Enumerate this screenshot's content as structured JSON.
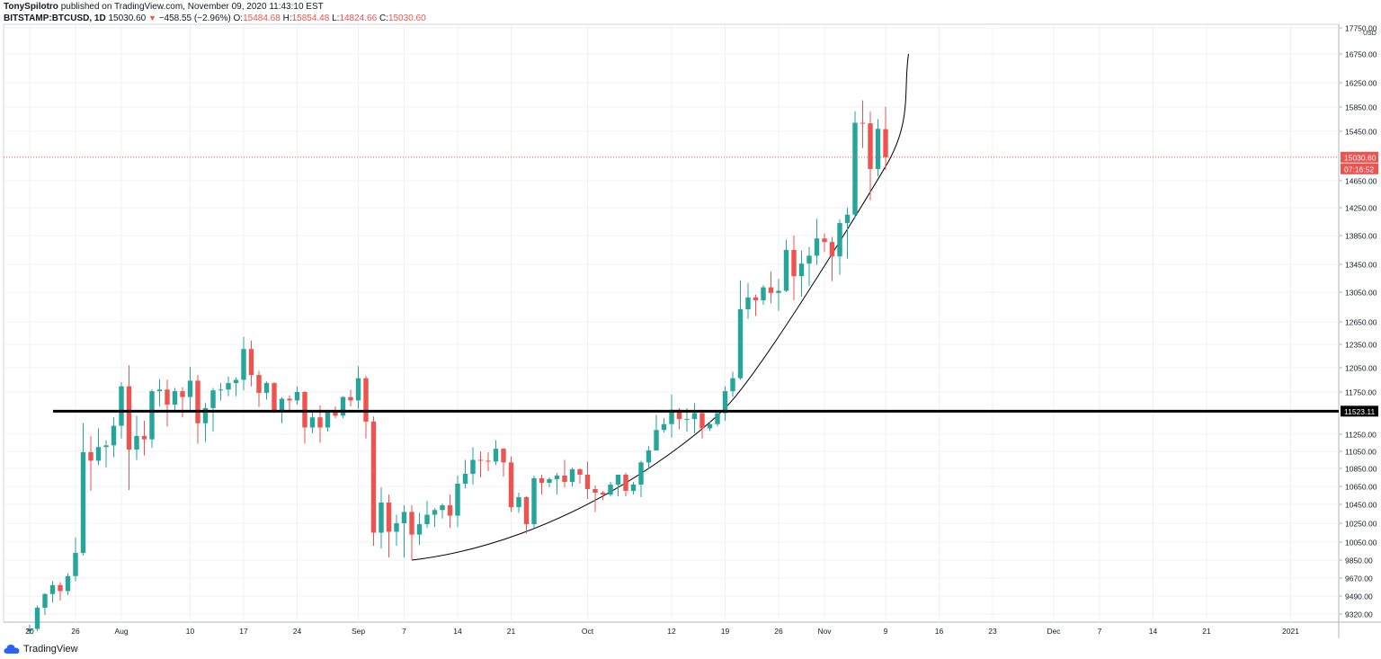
{
  "header": {
    "author": "TonySpilotro",
    "published": "published on TradingView.com, November 09, 2020 11:43:10 EST",
    "symbol": "BITSTAMP:BTCUSD, 1D",
    "last": "15030.60",
    "change": "−458.55 (−2.96%)",
    "o_label": "O:",
    "o_value": "15484.68",
    "h_label": "H:",
    "h_value": "15854.48",
    "l_label": "L:",
    "l_value": "14824.66",
    "c_label": "C:",
    "c_value": "15030.60"
  },
  "footer": {
    "logo_text": "TradingView",
    "logo_icon": "tradingview-cloud-icon"
  },
  "colors": {
    "up": "#26a69a",
    "down": "#ef5350",
    "grid": "#eef0f3",
    "text": "#131722"
  },
  "chart_data": {
    "type": "candlestick",
    "currency_label": "USD",
    "y_ticks": [
      17750,
      16750,
      16250,
      15850,
      15450,
      15030.6,
      14650,
      14250,
      13850,
      13450,
      13050,
      12650,
      12350,
      12050,
      11750,
      11523.11,
      11250,
      11050,
      10850,
      10650,
      10450,
      10250,
      10050,
      9850,
      9670,
      9490,
      9320
    ],
    "y_tick_labels": [
      "17750.00",
      "16750.00",
      "16250.00",
      "15850.00",
      "15450.00",
      "15030.60",
      "14650.00",
      "14250.00",
      "13850.00",
      "13450.00",
      "13050.00",
      "12650.00",
      "12350.00",
      "12050.00",
      "11750.00",
      "11523.11",
      "11250.00",
      "11050.00",
      "10850.00",
      "10650.00",
      "10450.00",
      "10250.00",
      "10050.00",
      "9850.00",
      "9670.00",
      "9490.00",
      "9320.00"
    ],
    "x_ticks": [
      {
        "label": "20",
        "date": "2020-07-20"
      },
      {
        "label": "26",
        "date": "2020-07-26"
      },
      {
        "label": "Aug",
        "date": "2020-08-01"
      },
      {
        "label": "10",
        "date": "2020-08-10"
      },
      {
        "label": "17",
        "date": "2020-08-17"
      },
      {
        "label": "24",
        "date": "2020-08-24"
      },
      {
        "label": "Sep",
        "date": "2020-09-01"
      },
      {
        "label": "7",
        "date": "2020-09-07"
      },
      {
        "label": "14",
        "date": "2020-09-14"
      },
      {
        "label": "21",
        "date": "2020-09-21"
      },
      {
        "label": "Oct",
        "date": "2020-10-01"
      },
      {
        "label": "12",
        "date": "2020-10-12"
      },
      {
        "label": "19",
        "date": "2020-10-19"
      },
      {
        "label": "26",
        "date": "2020-10-26"
      },
      {
        "label": "Nov",
        "date": "2020-11-01"
      },
      {
        "label": "9",
        "date": "2020-11-09"
      },
      {
        "label": "16",
        "date": "2020-11-16"
      },
      {
        "label": "23",
        "date": "2020-11-23"
      },
      {
        "label": "Dec",
        "date": "2020-12-01"
      },
      {
        "label": "7",
        "date": "2020-12-07"
      },
      {
        "label": "14",
        "date": "2020-12-14"
      },
      {
        "label": "21",
        "date": "2020-12-21"
      },
      {
        "label": "2021",
        "date": "2021-01-01"
      }
    ],
    "candles": [
      [
        "2020-07-20",
        9160,
        9220,
        9130,
        9180
      ],
      [
        "2020-07-21",
        9180,
        9400,
        9160,
        9380
      ],
      [
        "2020-07-22",
        9380,
        9520,
        9310,
        9510
      ],
      [
        "2020-07-23",
        9510,
        9640,
        9430,
        9600
      ],
      [
        "2020-07-24",
        9600,
        9630,
        9450,
        9540
      ],
      [
        "2020-07-25",
        9540,
        9720,
        9500,
        9690
      ],
      [
        "2020-07-26",
        9690,
        10100,
        9640,
        9930
      ],
      [
        "2020-07-27",
        9930,
        11380,
        9900,
        11040
      ],
      [
        "2020-07-28",
        11040,
        11230,
        10600,
        10940
      ],
      [
        "2020-07-29",
        10940,
        11320,
        10890,
        11100
      ],
      [
        "2020-07-30",
        11100,
        11180,
        10860,
        11120
      ],
      [
        "2020-07-31",
        11120,
        11450,
        10980,
        11350
      ],
      [
        "2020-08-01",
        11350,
        11870,
        11200,
        11820
      ],
      [
        "2020-08-02",
        11820,
        12080,
        10610,
        11070
      ],
      [
        "2020-08-03",
        11070,
        11470,
        10950,
        11230
      ],
      [
        "2020-08-04",
        11230,
        11410,
        11000,
        11190
      ],
      [
        "2020-08-05",
        11190,
        11780,
        11090,
        11760
      ],
      [
        "2020-08-06",
        11760,
        11910,
        11580,
        11780
      ],
      [
        "2020-08-07",
        11780,
        11900,
        11340,
        11600
      ],
      [
        "2020-08-08",
        11600,
        11800,
        11530,
        11760
      ],
      [
        "2020-08-09",
        11760,
        11810,
        11450,
        11690
      ],
      [
        "2020-08-10",
        11690,
        12060,
        11540,
        11890
      ],
      [
        "2020-08-11",
        11890,
        11960,
        11140,
        11380
      ],
      [
        "2020-08-12",
        11380,
        11620,
        11160,
        11560
      ],
      [
        "2020-08-13",
        11560,
        11800,
        11280,
        11770
      ],
      [
        "2020-08-14",
        11770,
        11860,
        11650,
        11780
      ],
      [
        "2020-08-15",
        11780,
        11940,
        11700,
        11860
      ],
      [
        "2020-08-16",
        11860,
        11930,
        11700,
        11900
      ],
      [
        "2020-08-17",
        11900,
        12450,
        11770,
        12290
      ],
      [
        "2020-08-18",
        12290,
        12400,
        11820,
        11960
      ],
      [
        "2020-08-19",
        11960,
        12010,
        11570,
        11740
      ],
      [
        "2020-08-20",
        11740,
        11880,
        11660,
        11860
      ],
      [
        "2020-08-21",
        11860,
        11870,
        11500,
        11520
      ],
      [
        "2020-08-22",
        11520,
        11690,
        11380,
        11670
      ],
      [
        "2020-08-23",
        11670,
        11710,
        11520,
        11650
      ],
      [
        "2020-08-24",
        11650,
        11820,
        11600,
        11750
      ],
      [
        "2020-08-25",
        11750,
        11760,
        11140,
        11330
      ],
      [
        "2020-08-26",
        11330,
        11530,
        11260,
        11450
      ],
      [
        "2020-08-27",
        11450,
        11590,
        11150,
        11330
      ],
      [
        "2020-08-28",
        11330,
        11540,
        11280,
        11520
      ],
      [
        "2020-08-29",
        11520,
        11580,
        11440,
        11470
      ],
      [
        "2020-08-30",
        11470,
        11700,
        11440,
        11690
      ],
      [
        "2020-08-31",
        11690,
        11780,
        11580,
        11650
      ],
      [
        "2020-09-01",
        11650,
        12070,
        11550,
        11920
      ],
      [
        "2020-09-02",
        11920,
        11950,
        11200,
        11400
      ],
      [
        "2020-09-03",
        11400,
        11460,
        10010,
        10150
      ],
      [
        "2020-09-04",
        10150,
        10640,
        9980,
        10470
      ],
      [
        "2020-09-05",
        10470,
        10560,
        9880,
        10160
      ],
      [
        "2020-09-06",
        10160,
        10340,
        10010,
        10250
      ],
      [
        "2020-09-07",
        10250,
        10440,
        9880,
        10370
      ],
      [
        "2020-09-08",
        10370,
        10440,
        9850,
        10130
      ],
      [
        "2020-09-09",
        10130,
        10360,
        10020,
        10240
      ],
      [
        "2020-09-10",
        10240,
        10490,
        10200,
        10340
      ],
      [
        "2020-09-11",
        10340,
        10410,
        10210,
        10390
      ],
      [
        "2020-09-12",
        10390,
        10460,
        10300,
        10440
      ],
      [
        "2020-09-13",
        10440,
        10560,
        10200,
        10330
      ],
      [
        "2020-09-14",
        10330,
        10770,
        10210,
        10680
      ],
      [
        "2020-09-15",
        10680,
        10950,
        10630,
        10790
      ],
      [
        "2020-09-16",
        10790,
        11100,
        10670,
        10950
      ],
      [
        "2020-09-17",
        10950,
        11050,
        10750,
        10940
      ],
      [
        "2020-09-18",
        10940,
        11040,
        10820,
        10930
      ],
      [
        "2020-09-19",
        10930,
        11180,
        10890,
        11080
      ],
      [
        "2020-09-20",
        11080,
        11090,
        10760,
        10920
      ],
      [
        "2020-09-21",
        10920,
        10990,
        10370,
        10420
      ],
      [
        "2020-09-22",
        10420,
        10580,
        10360,
        10530
      ],
      [
        "2020-09-23",
        10530,
        10540,
        10140,
        10240
      ],
      [
        "2020-09-24",
        10240,
        10770,
        10200,
        10740
      ],
      [
        "2020-09-25",
        10740,
        10780,
        10560,
        10690
      ],
      [
        "2020-09-26",
        10690,
        10750,
        10640,
        10730
      ],
      [
        "2020-09-27",
        10730,
        10800,
        10560,
        10770
      ],
      [
        "2020-09-28",
        10770,
        10950,
        10640,
        10700
      ],
      [
        "2020-09-29",
        10700,
        10860,
        10650,
        10840
      ],
      [
        "2020-09-30",
        10840,
        10850,
        10680,
        10780
      ],
      [
        "2020-10-01",
        10780,
        10930,
        10510,
        10620
      ],
      [
        "2020-10-02",
        10620,
        10660,
        10370,
        10580
      ],
      [
        "2020-10-03",
        10580,
        10600,
        10500,
        10560
      ],
      [
        "2020-10-04",
        10560,
        10700,
        10540,
        10670
      ],
      [
        "2020-10-05",
        10670,
        10780,
        10540,
        10780
      ],
      [
        "2020-10-06",
        10780,
        10800,
        10540,
        10600
      ],
      [
        "2020-10-07",
        10600,
        10700,
        10560,
        10670
      ],
      [
        "2020-10-08",
        10670,
        10940,
        10530,
        10920
      ],
      [
        "2020-10-09",
        10920,
        11110,
        10840,
        11060
      ],
      [
        "2020-10-10",
        11060,
        11480,
        11060,
        11300
      ],
      [
        "2020-10-11",
        11300,
        11440,
        11270,
        11370
      ],
      [
        "2020-10-12",
        11370,
        11720,
        11210,
        11540
      ],
      [
        "2020-10-13",
        11540,
        11560,
        11310,
        11430
      ],
      [
        "2020-10-14",
        11430,
        11560,
        11280,
        11430
      ],
      [
        "2020-10-15",
        11430,
        11620,
        11260,
        11500
      ],
      [
        "2020-10-16",
        11500,
        11540,
        11200,
        11320
      ],
      [
        "2020-10-17",
        11320,
        11400,
        11290,
        11370
      ],
      [
        "2020-10-18",
        11370,
        11480,
        11340,
        11500
      ],
      [
        "2020-10-19",
        11500,
        11820,
        11410,
        11760
      ],
      [
        "2020-10-20",
        11760,
        12000,
        11690,
        11920
      ],
      [
        "2020-10-21",
        11920,
        13220,
        11900,
        12820
      ],
      [
        "2020-10-22",
        12820,
        13180,
        12690,
        12980
      ],
      [
        "2020-10-23",
        12980,
        13020,
        12730,
        12940
      ],
      [
        "2020-10-24",
        12940,
        13150,
        12880,
        13120
      ],
      [
        "2020-10-25",
        13120,
        13350,
        12900,
        13040
      ],
      [
        "2020-10-26",
        13040,
        13240,
        12800,
        13070
      ],
      [
        "2020-10-27",
        13070,
        13790,
        13050,
        13650
      ],
      [
        "2020-10-28",
        13650,
        13850,
        12940,
        13280
      ],
      [
        "2020-10-29",
        13280,
        13640,
        12990,
        13460
      ],
      [
        "2020-10-30",
        13460,
        13690,
        13140,
        13570
      ],
      [
        "2020-10-31",
        13570,
        14090,
        13440,
        13810
      ],
      [
        "2020-11-01",
        13810,
        13880,
        13620,
        13760
      ],
      [
        "2020-11-02",
        13760,
        13830,
        13210,
        13560
      ],
      [
        "2020-11-03",
        13560,
        14080,
        13300,
        14030
      ],
      [
        "2020-11-04",
        14030,
        14250,
        13530,
        14150
      ],
      [
        "2020-11-05",
        14150,
        15780,
        14100,
        15590
      ],
      [
        "2020-11-06",
        15590,
        15960,
        15180,
        15580
      ],
      [
        "2020-11-07",
        15580,
        15770,
        14360,
        14840
      ],
      [
        "2020-11-08",
        14840,
        15650,
        14720,
        15490
      ],
      [
        "2020-11-09",
        15484.68,
        15854.48,
        14824.66,
        15030.6
      ]
    ],
    "support_line": {
      "value": 11523.11,
      "label": "11523.11"
    },
    "current_price": {
      "value": 15030.6,
      "label": "15030.60",
      "countdown": "07:16:52"
    },
    "trend_curve": [
      {
        "date": "2020-09-08",
        "value": 9850
      },
      {
        "date": "2020-10-19",
        "value": 11560
      },
      {
        "date": "2020-11-09",
        "value": 14880
      },
      {
        "date": "2020-11-12",
        "value": 16750
      }
    ]
  }
}
